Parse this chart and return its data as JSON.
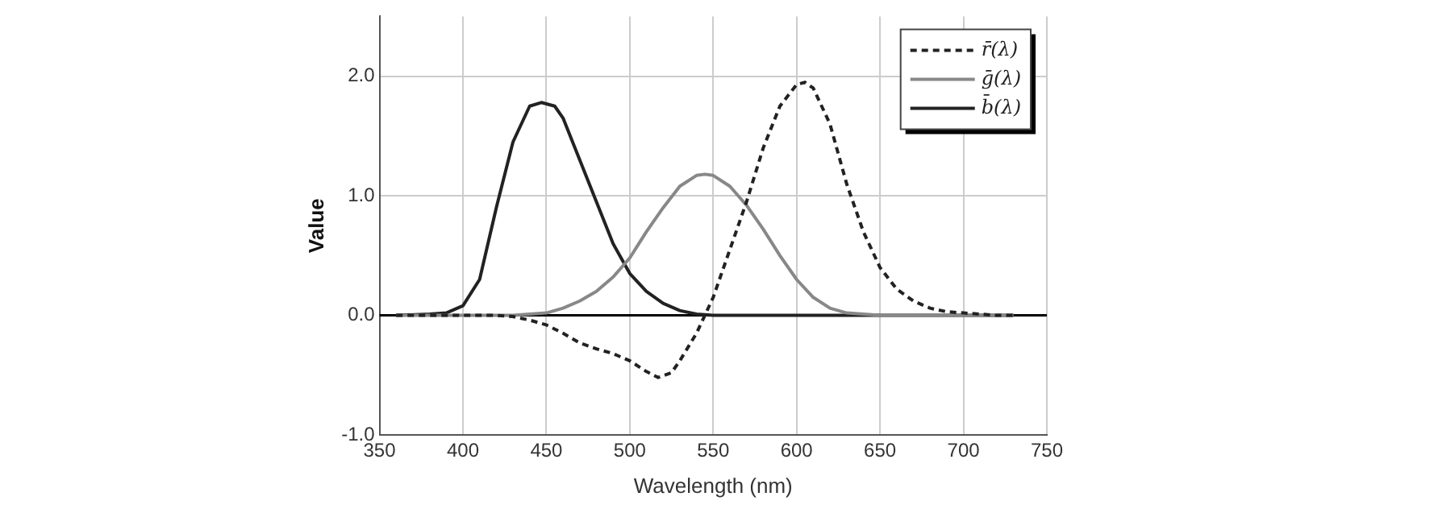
{
  "chart_data": {
    "type": "line",
    "xlabel": "Wavelength (nm)",
    "ylabel": "Value",
    "xlim": [
      350,
      750
    ],
    "xticks": [
      350,
      400,
      450,
      500,
      550,
      600,
      650,
      700,
      750
    ],
    "ylim": [
      -1,
      2.5
    ],
    "yticks": [
      {
        "value": -1,
        "label": "-1.0"
      },
      {
        "value": 0,
        "label": "0.0"
      },
      {
        "value": 1,
        "label": "1.0"
      },
      {
        "value": 2,
        "label": "2.0"
      }
    ],
    "grid": true,
    "legend": "top right",
    "marker": "none",
    "ref_lines": [
      {
        "axis": "y",
        "value": 0,
        "color": "#000000"
      }
    ],
    "series": [
      {
        "name": "r̄(λ)",
        "color": "#222222",
        "line_style": "dashed",
        "x": [
          360,
          380,
          400,
          420,
          430,
          440,
          450,
          460,
          470,
          480,
          490,
          500,
          510,
          517,
          525,
          530,
          540,
          545,
          550,
          560,
          570,
          580,
          590,
          600,
          605,
          610,
          620,
          630,
          640,
          650,
          660,
          670,
          680,
          690,
          700,
          710,
          720,
          730
        ],
        "values": [
          0,
          0,
          0,
          0,
          -0.01,
          -0.04,
          -0.08,
          -0.15,
          -0.23,
          -0.28,
          -0.32,
          -0.38,
          -0.47,
          -0.52,
          -0.48,
          -0.38,
          -0.15,
          0,
          0.15,
          0.55,
          0.95,
          1.4,
          1.75,
          1.93,
          1.95,
          1.9,
          1.6,
          1.1,
          0.7,
          0.4,
          0.22,
          0.12,
          0.06,
          0.03,
          0.02,
          0.01,
          0,
          0
        ]
      },
      {
        "name": "ḡ(λ)",
        "color": "#888888",
        "line_style": "solid",
        "x": [
          360,
          380,
          400,
          420,
          430,
          440,
          450,
          460,
          470,
          480,
          490,
          500,
          510,
          520,
          530,
          540,
          545,
          550,
          560,
          570,
          580,
          590,
          600,
          610,
          620,
          630,
          640,
          650,
          670,
          690,
          710,
          730
        ],
        "values": [
          0,
          0,
          0,
          0,
          0,
          0.01,
          0.02,
          0.06,
          0.12,
          0.2,
          0.32,
          0.48,
          0.7,
          0.9,
          1.08,
          1.17,
          1.18,
          1.17,
          1.08,
          0.92,
          0.72,
          0.5,
          0.3,
          0.15,
          0.06,
          0.02,
          0.01,
          0,
          0,
          0,
          0,
          0
        ]
      },
      {
        "name": "b̄(λ)",
        "color": "#222222",
        "line_style": "solid",
        "x": [
          360,
          380,
          390,
          400,
          410,
          420,
          430,
          440,
          447,
          455,
          460,
          470,
          480,
          490,
          500,
          510,
          520,
          530,
          540,
          550,
          570,
          600,
          650,
          700,
          730
        ],
        "values": [
          0,
          0.01,
          0.02,
          0.08,
          0.3,
          0.9,
          1.45,
          1.75,
          1.78,
          1.75,
          1.65,
          1.3,
          0.95,
          0.6,
          0.35,
          0.2,
          0.1,
          0.04,
          0.01,
          0,
          0,
          0,
          0,
          0,
          0
        ]
      }
    ]
  }
}
